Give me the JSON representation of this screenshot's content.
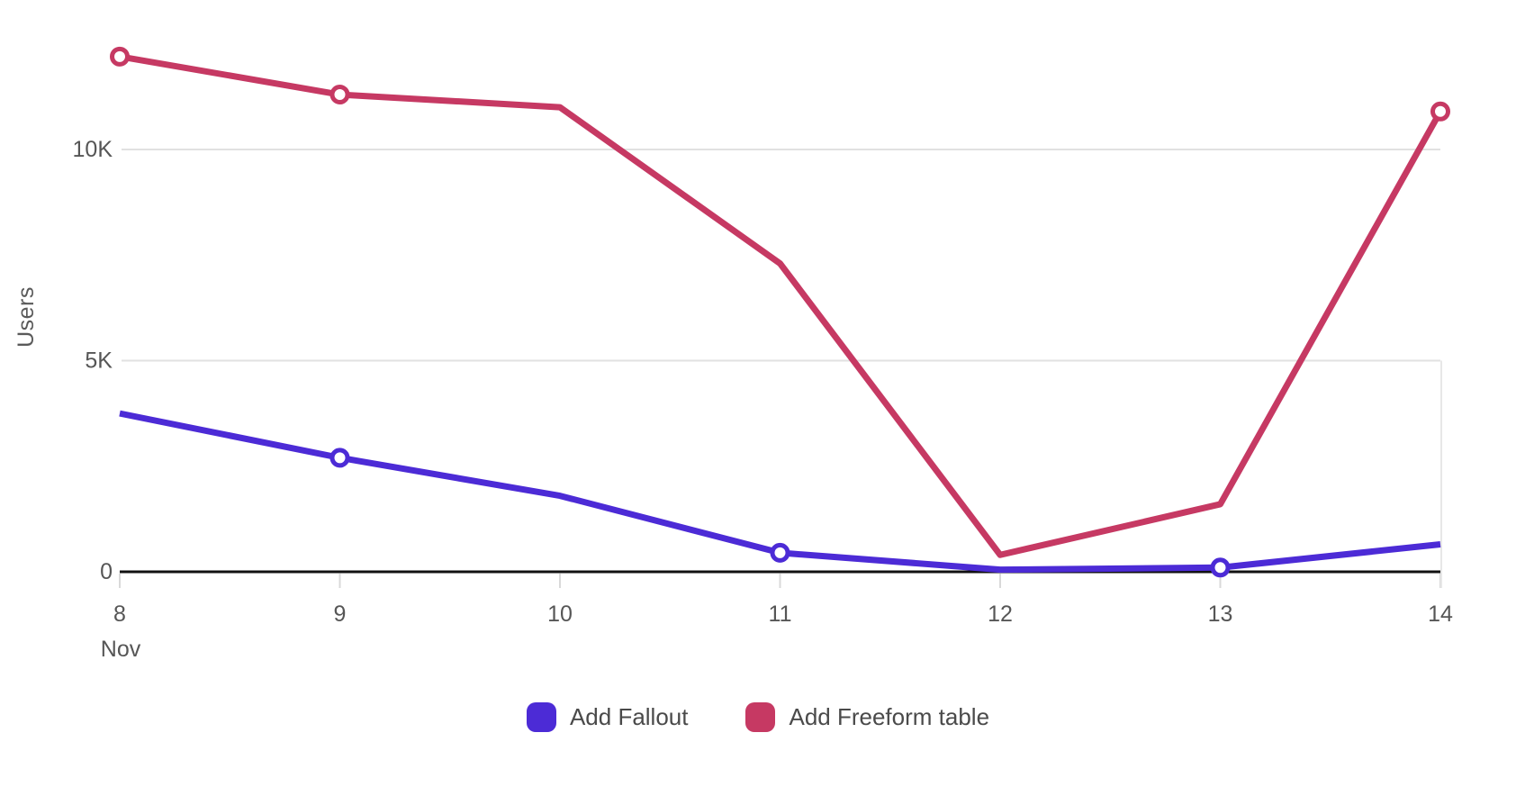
{
  "chart_data": {
    "type": "line",
    "title": "",
    "ylabel": "Users",
    "xlabel_month": "Nov",
    "x": [
      8,
      9,
      10,
      11,
      12,
      13,
      14
    ],
    "x_tick_labels": [
      "8",
      "9",
      "10",
      "11",
      "12",
      "13",
      "14"
    ],
    "y_ticks": [
      {
        "label": "0",
        "value": 0
      },
      {
        "label": "5K",
        "value": 5000
      },
      {
        "label": "10K",
        "value": 10000
      }
    ],
    "ylim": [
      0,
      13540
    ],
    "grid": "horizontal",
    "legend_position": "bottom",
    "series": [
      {
        "name": "Add Fallout",
        "color": "#4C2BD6",
        "values": [
          3750,
          2700,
          1800,
          450,
          50,
          100,
          650
        ],
        "markers_at": [
          9,
          11,
          13
        ]
      },
      {
        "name": "Add Freeform table",
        "color": "#C63963",
        "values": [
          12200,
          11300,
          11000,
          7300,
          400,
          1600,
          10900
        ],
        "markers_at": [
          8,
          9,
          14
        ]
      }
    ],
    "colors": {
      "axis_line": "#111111",
      "grid_line": "#e1e1e1",
      "tick_mark": "#d9d9d9",
      "tick_text": "#565656",
      "legend_text": "#4a4a4a",
      "marker_fill": "#ffffff"
    }
  }
}
